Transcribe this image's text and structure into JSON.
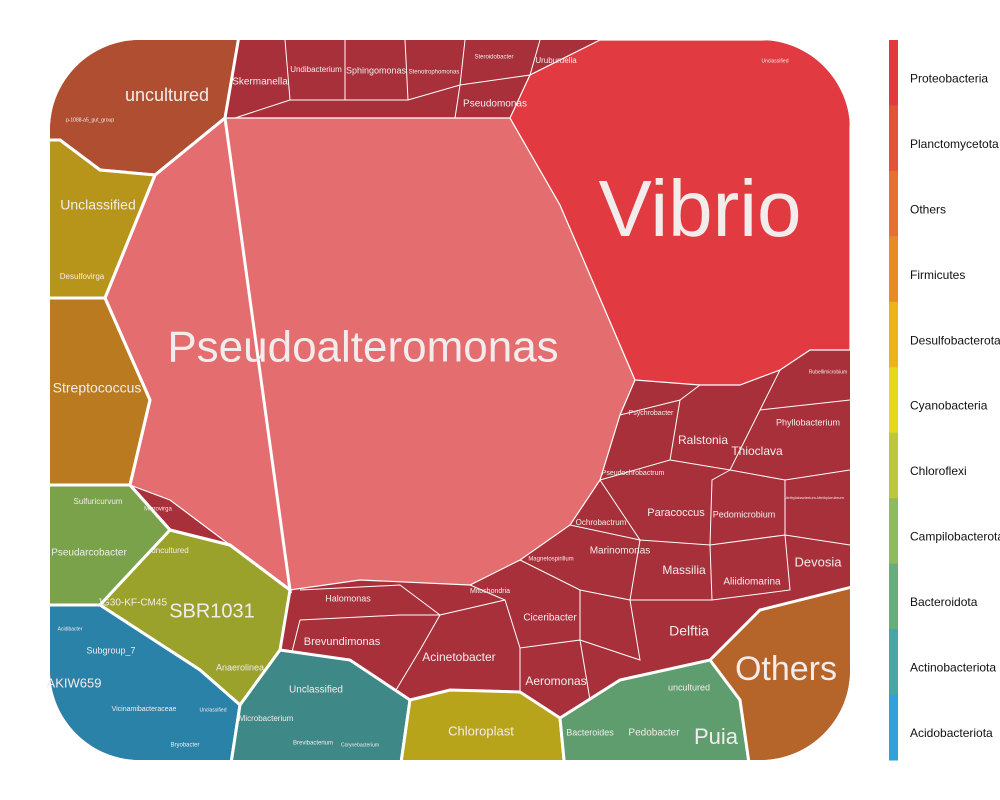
{
  "cells": [
    "Pseudoalteromonas",
    "Vibrio",
    "uncultured",
    "p-1088-a5_gut_group",
    "Unclassified",
    "Desulfovirga",
    "Streptococcus",
    "Sulfuricurvum",
    "Pseudarcobacter",
    "uncultured",
    "JG30-KF-CM45",
    "SBR1031",
    "Anaerolinea",
    "Subgroup_7",
    "AKIW659",
    "Vicinamibacteraceae",
    "Acidibacter",
    "Bryobacter",
    "Unclassified",
    "Unclassified",
    "Microbacterium",
    "Brevibacterium",
    "Chloroplast",
    "Bacteroides",
    "Pedobacter",
    "uncultured",
    "Puia",
    "Others",
    "Skermanella",
    "Undibacterium",
    "Sphingomonas",
    "Stenotrophomonas",
    "Steroidobacter",
    "Uruburuella",
    "Pseudomonas",
    "Unclassified",
    "Rubellimicrobium",
    "Psychrobacter",
    "Phyllobacterium",
    "Ralstonia",
    "Thioclava",
    "Pseudochrobactrum",
    "Paracoccus",
    "Pedomicrobium",
    "Ochrobactrum",
    "Methylobacterium-Methylorubrum",
    "Magnetospirillum",
    "Marinomonas",
    "Massilia",
    "Aliidiomarina",
    "Devosia",
    "Halomonas",
    "Mitochondria",
    "Ciceribacter",
    "Brevundimonas",
    "Acinetobacter",
    "Delftia",
    "Aeromonas",
    "Microvirga",
    "Corynebacterium"
  ],
  "legend": {
    "items": [
      {
        "name": "Proteobacteria",
        "color": "#e2393f"
      },
      {
        "name": "Planctomycetota",
        "color": "#e4523a"
      },
      {
        "name": "Others",
        "color": "#e86f30"
      },
      {
        "name": "Firmicutes",
        "color": "#eb8a22"
      },
      {
        "name": "Desulfobacterota",
        "color": "#ebb51a"
      },
      {
        "name": "Cyanobacteria",
        "color": "#e6d81b"
      },
      {
        "name": "Chloroflexi",
        "color": "#bcc83a"
      },
      {
        "name": "Campilobacterota",
        "color": "#8fba5f"
      },
      {
        "name": "Bacteroidota",
        "color": "#68ad7c"
      },
      {
        "name": "Actinobacteriota",
        "color": "#4aa5a3"
      },
      {
        "name": "Acidobacteriota",
        "color": "#2fa3d6"
      }
    ]
  }
}
